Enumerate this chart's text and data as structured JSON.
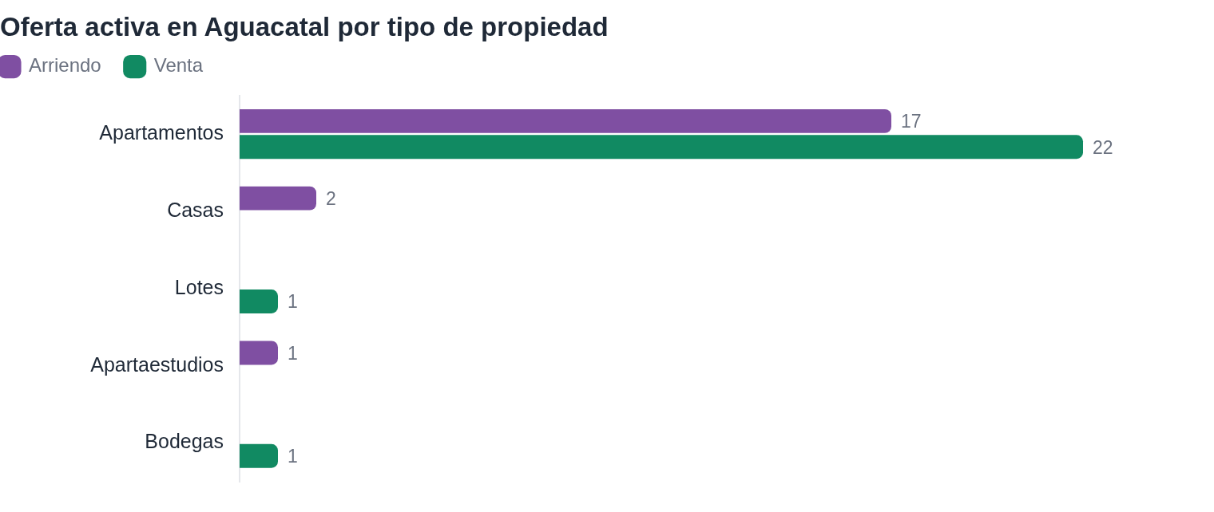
{
  "chart_data": {
    "type": "bar",
    "orientation": "horizontal",
    "title": "Oferta activa en Aguacatal por tipo de propiedad",
    "categories": [
      "Apartamentos",
      "Casas",
      "Lotes",
      "Apartaestudios",
      "Bodegas"
    ],
    "series": [
      {
        "name": "Arriendo",
        "color": "#7f4fa2",
        "values": [
          17,
          2,
          null,
          1,
          null
        ]
      },
      {
        "name": "Venta",
        "color": "#118a62",
        "values": [
          22,
          null,
          1,
          null,
          1
        ]
      }
    ],
    "data_labels": true,
    "legend": "top left",
    "grid": false,
    "tick_labels": "y"
  }
}
